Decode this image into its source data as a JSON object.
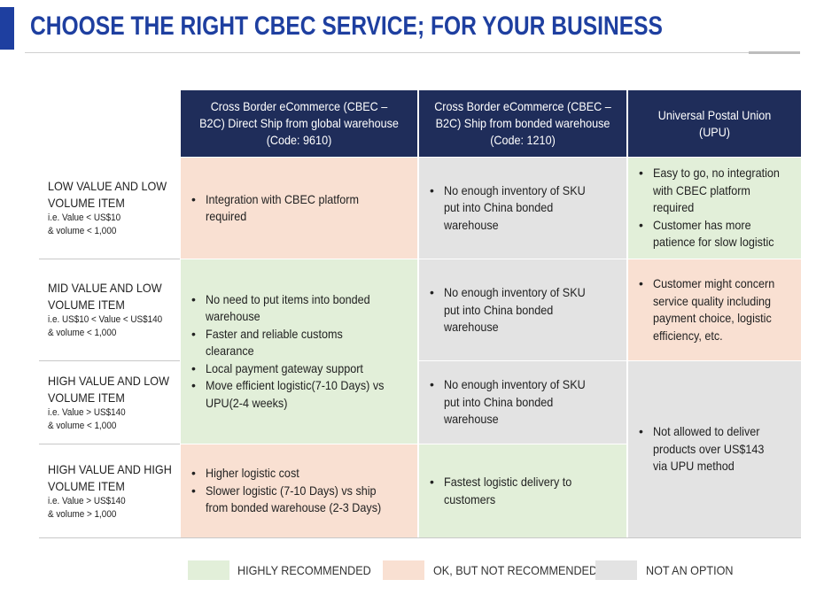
{
  "title": "CHOOSE THE RIGHT CBEC SERVICE; FOR YOUR BUSINESS",
  "columns": [
    "Cross Border eCommerce (CBEC – B2C) Direct Ship from global warehouse (Code: 9610)",
    "Cross Border eCommerce (CBEC – B2C) Ship from bonded warehouse (Code: 1210)",
    "Universal Postal Union (UPU)"
  ],
  "rows": [
    {
      "title_1": "LOW VALUE AND LOW",
      "title_2": "VOLUME ITEM",
      "sub_1": "i.e. Value < US$10",
      "sub_2": "& volume < 1,000"
    },
    {
      "title_1": "MID VALUE AND LOW",
      "title_2": "VOLUME ITEM",
      "sub_1": "i.e. US$10 < Value < US$140",
      "sub_2": "& volume < 1,000"
    },
    {
      "title_1": "HIGH VALUE AND LOW",
      "title_2": "VOLUME ITEM",
      "sub_1": "i.e. Value > US$140",
      "sub_2": "& volume < 1,000"
    },
    {
      "title_1": "HIGH VALUE AND HIGH",
      "title_2": "VOLUME ITEM",
      "sub_1": "i.e. Value > US$140",
      "sub_2": "& volume > 1,000"
    }
  ],
  "cells": {
    "c1_low": {
      "rating": "ok",
      "bullets": [
        "Integration with CBEC platform required"
      ]
    },
    "c1_mid_high": {
      "rating": "highly",
      "bullets": [
        "No need to put items into bonded warehouse",
        "Faster and reliable customs clearance",
        "Local payment gateway support",
        "Move efficient logistic(7-10 Days) vs UPU(2-4 weeks)"
      ]
    },
    "c1_highhigh": {
      "rating": "ok",
      "bullets": [
        "Higher logistic cost",
        "Slower logistic (7-10 Days) vs ship from bonded warehouse (2-3 Days)"
      ]
    },
    "c2_low": {
      "rating": "not",
      "bullets": [
        "No enough inventory of SKU put into China bonded warehouse"
      ]
    },
    "c2_mid": {
      "rating": "not",
      "bullets": [
        "No enough inventory of SKU put into China bonded warehouse"
      ]
    },
    "c2_high": {
      "rating": "not",
      "bullets": [
        "No enough inventory of SKU put into China bonded warehouse"
      ]
    },
    "c2_highhigh": {
      "rating": "highly",
      "bullets": [
        "Fastest logistic delivery to customers"
      ]
    },
    "c3_low": {
      "rating": "highly",
      "bullets": [
        "Easy to go, no integration with CBEC platform required",
        "Customer has more patience for slow logistic"
      ]
    },
    "c3_mid": {
      "rating": "ok",
      "bullets": [
        "Customer might concern service quality including payment choice, logistic efficiency, etc."
      ]
    },
    "c3_high_highhigh": {
      "rating": "not",
      "bullets": [
        "Not allowed to deliver products over US$143 via UPU method"
      ]
    }
  },
  "legend": [
    {
      "label": "HIGHLY RECOMMENDED",
      "color": "#e2efd9"
    },
    {
      "label": "OK, BUT NOT RECOMMENDED",
      "color": "#f9e0d2"
    },
    {
      "label": "NOT AN OPTION",
      "color": "#e3e3e3"
    }
  ],
  "colors": {
    "title": "#1e3fa0",
    "header": "#1f2d5a",
    "highly": "#e2efd9",
    "ok": "#f9e0d2",
    "not": "#e3e3e3"
  }
}
